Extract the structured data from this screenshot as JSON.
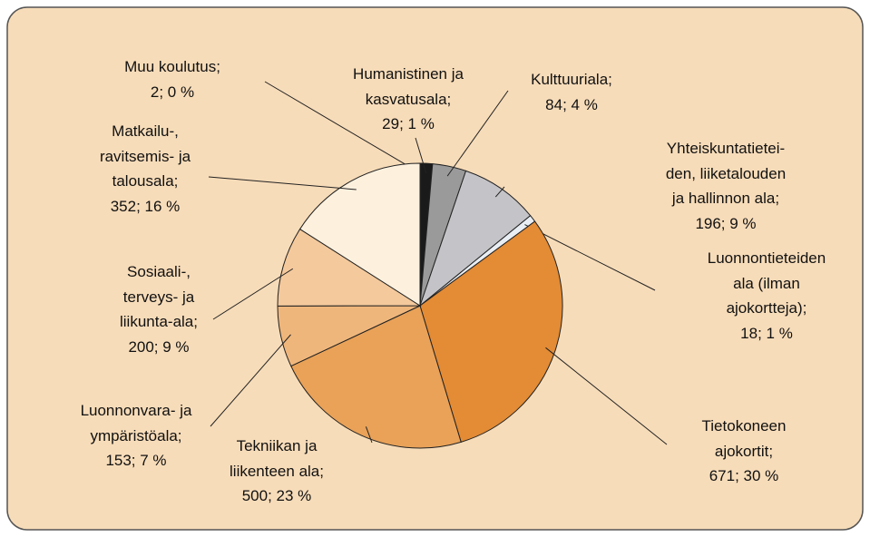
{
  "chart_data": {
    "type": "pie",
    "categories": [
      "Muu koulutus;",
      "Humanistinen ja\nkasvatusala;",
      "Kulttuuriala;",
      "Yhteiskuntatietei-\nden, liiketalouden\nja hallinnon ala;",
      "Luonnontieteiden\nala (ilman\najokortteja);",
      "Tietokoneen\najokortit;",
      "Tekniikan ja\nliikenteen ala;",
      "Luonnonvara- ja\nympäristöala;",
      "Sosiaali-,\nterveys- ja\nliikunta-ala;",
      "Matkailu-,\nravitsemis- ja\ntalousala;"
    ],
    "values": [
      2,
      29,
      84,
      196,
      18,
      671,
      500,
      153,
      200,
      352
    ],
    "value_labels": [
      "2; 0 %",
      "29; 1 %",
      "84; 4 %",
      "196; 9 %",
      "18; 1 %",
      "671; 30 %",
      "500; 23 %",
      "153; 7 %",
      "200; 9 %",
      "352; 16 %"
    ],
    "colors": [
      "#ffffff",
      "#1a1a1a",
      "#9a9a9a",
      "#c4c4c8",
      "#e8eef4",
      "#e38b35",
      "#e9a258",
      "#efb67c",
      "#f4c99c",
      "#fdf1de"
    ]
  }
}
